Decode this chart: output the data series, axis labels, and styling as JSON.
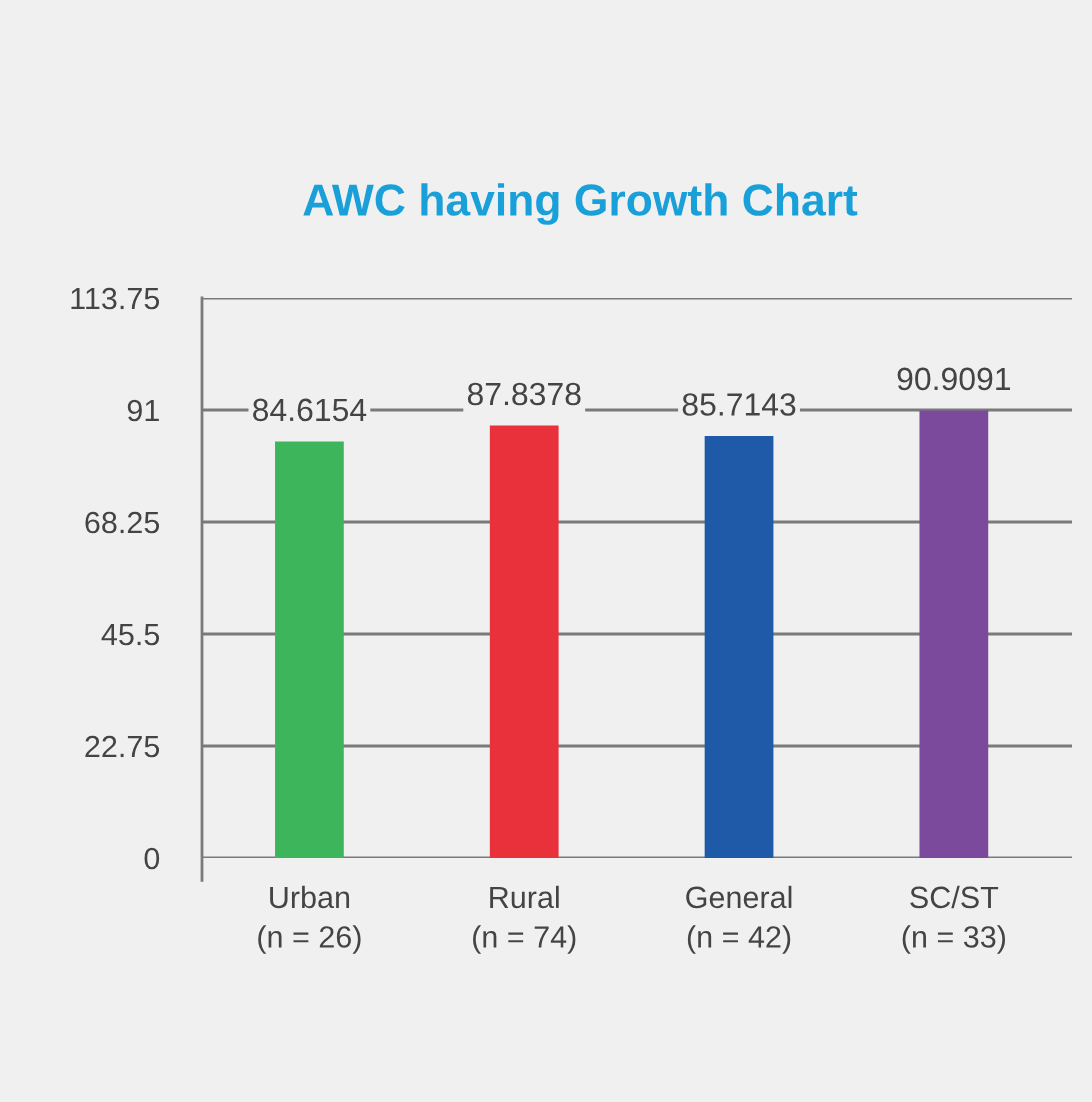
{
  "chart_data": {
    "type": "bar",
    "title": "AWC having Growth Chart",
    "categories": [
      "Urban\n(n = 26)",
      "Rural\n(n = 74)",
      "General\n(n = 42)",
      "SC/ST\n(n = 33)"
    ],
    "values": [
      84.6154,
      87.8378,
      85.7143,
      90.9091
    ],
    "colors": [
      "#3db55a",
      "#e8313a",
      "#1f5aa8",
      "#7b4a9c"
    ],
    "ylim": [
      0,
      113.75
    ],
    "yticks": [
      0,
      22.75,
      45.5,
      68.25,
      91,
      113.75
    ],
    "grid": "y",
    "data_labels": true,
    "legend": false
  }
}
